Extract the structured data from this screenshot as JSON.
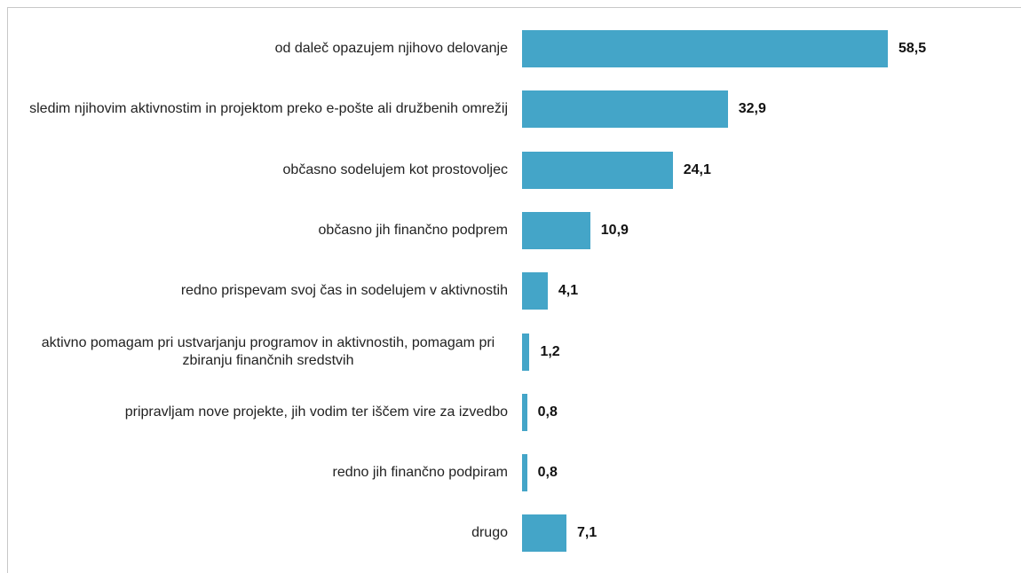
{
  "chart_data": {
    "type": "barh",
    "categories": [
      "od daleč opazujem njihovo delovanje",
      "sledim njihovim aktivnostim in projektom preko e-pošte ali družbenih omrežij",
      "občasno sodelujem kot prostovoljec",
      "občasno jih finančno podprem",
      "redno prispevam svoj čas in sodelujem v aktivnostih",
      "aktivno pomagam pri ustvarjanju programov in aktivnostih, pomagam pri zbiranju finančnih sredstvih",
      "pripravljam nove projekte, jih vodim ter iščem vire za izvedbo",
      "redno jih finančno podpiram",
      "drugo"
    ],
    "values": [
      58.5,
      32.9,
      24.1,
      10.9,
      4.1,
      1.2,
      0.8,
      0.8,
      7.1
    ],
    "value_labels": [
      "58,5",
      "32,9",
      "24,1",
      "10,9",
      "4,1",
      "1,2",
      "0,8",
      "0,8",
      "7,1"
    ],
    "color": "#44a5c8"
  }
}
